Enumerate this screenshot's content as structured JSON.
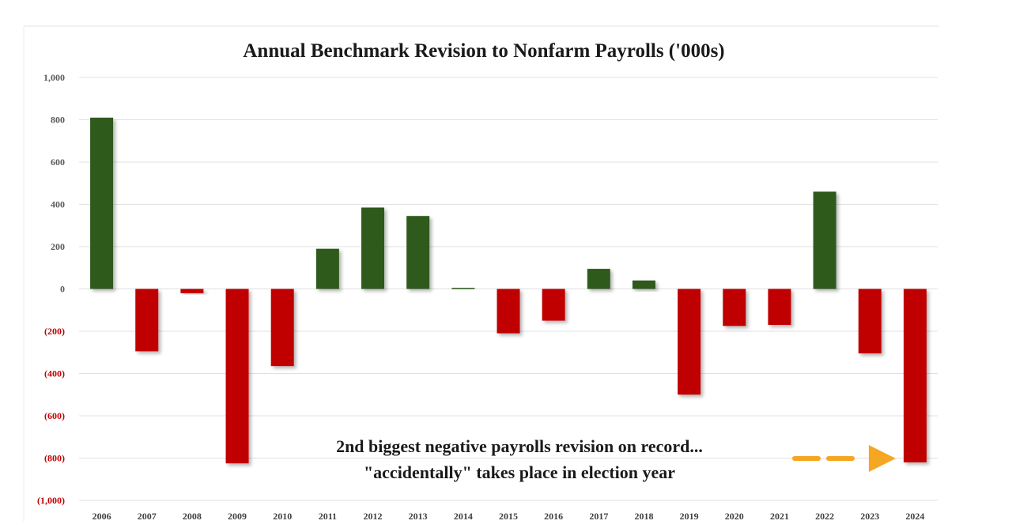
{
  "chart_data": {
    "type": "bar",
    "title": "Annual Benchmark Revision to Nonfarm Payrolls ('000s)",
    "xlabel": "",
    "ylabel": "",
    "ylim": [
      -1000,
      1000
    ],
    "yticks": [
      1000,
      800,
      600,
      400,
      200,
      0,
      -200,
      -400,
      -600,
      -800,
      -1000
    ],
    "ytick_labels": [
      "1,000",
      "800",
      "600",
      "400",
      "200",
      "0",
      "(200)",
      "(400)",
      "(600)",
      "(800)",
      "(1,000)"
    ],
    "grid": true,
    "categories": [
      "2006",
      "2007",
      "2008",
      "2009",
      "2010",
      "2011",
      "2012",
      "2013",
      "2014",
      "2015",
      "2016",
      "2017",
      "2018",
      "2019",
      "2020",
      "2021",
      "2022",
      "2023",
      "2024"
    ],
    "values": [
      810,
      -295,
      -20,
      -825,
      -365,
      190,
      385,
      345,
      5,
      -210,
      -150,
      95,
      40,
      -500,
      -175,
      -170,
      460,
      -305,
      -820
    ],
    "colors": {
      "positive": "#2d5a1e",
      "negative": "#c00000",
      "positive_label": "#595959",
      "negative_label": "#c00000",
      "arrow": "#f5a623"
    },
    "annotation": {
      "line1": "2nd  biggest negative payrolls revision on record...",
      "line2": "\"accidentally\" takes place in election year",
      "target_category": "2024"
    }
  }
}
